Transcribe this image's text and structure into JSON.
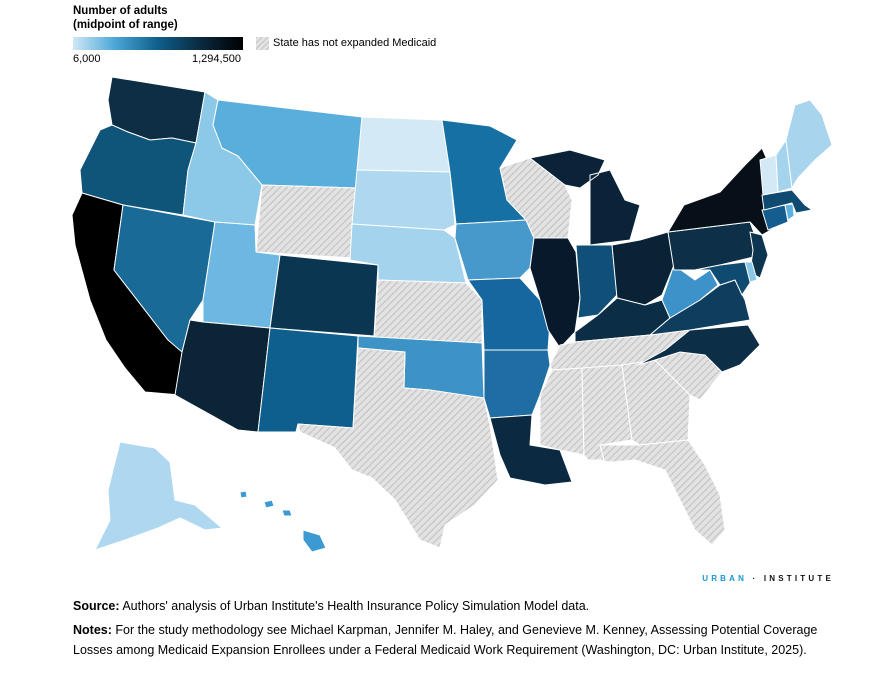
{
  "legend": {
    "title_line1": "Number of adults",
    "title_line2": "(midpoint of range)",
    "min_label": "6,000",
    "max_label": "1,294,500",
    "hatch_label": "State has not expanded Medicaid",
    "colors": [
      "#cfe8f6",
      "#4aa6d6",
      "#0e5f8a",
      "#0a2a40",
      "#000000"
    ]
  },
  "brand": {
    "part1": "URBAN",
    "separator": "·",
    "part2": "INSTITUTE"
  },
  "footer": {
    "source_label": "Source:",
    "source_text": " Authors' analysis of Urban Institute's Health Insurance Policy Simulation Model data.",
    "notes_label": "Notes:",
    "notes_text": " For the study methodology see Michael Karpman, Jennifer M. Haley, and Genevieve M. Kenney, Assessing Potential Coverage Losses among Medicaid Expansion Enrollees under a Federal Medicaid Work Requirement (Washington, DC: Urban Institute, 2025)."
  },
  "states": [
    {
      "name": "WA",
      "color": "#0d2e45",
      "hatched": false
    },
    {
      "name": "OR",
      "color": "#0f5479",
      "hatched": false
    },
    {
      "name": "CA",
      "color": "#000000",
      "hatched": false
    },
    {
      "name": "NV",
      "color": "#1a6a98",
      "hatched": false
    },
    {
      "name": "ID",
      "color": "#8cc8e8",
      "hatched": false
    },
    {
      "name": "MT",
      "color": "#5aaedc",
      "hatched": false
    },
    {
      "name": "WY",
      "color": "",
      "hatched": true
    },
    {
      "name": "UT",
      "color": "#6cb8e2",
      "hatched": false
    },
    {
      "name": "AZ",
      "color": "#0b2436",
      "hatched": false
    },
    {
      "name": "CO",
      "color": "#0b3651",
      "hatched": false
    },
    {
      "name": "NM",
      "color": "#0f5f8e",
      "hatched": false
    },
    {
      "name": "ND",
      "color": "#d3eaf6",
      "hatched": false
    },
    {
      "name": "SD",
      "color": "#add8ef",
      "hatched": false
    },
    {
      "name": "NE",
      "color": "#a4d3ee",
      "hatched": false
    },
    {
      "name": "KS",
      "color": "",
      "hatched": true
    },
    {
      "name": "OK",
      "color": "#3d92c6",
      "hatched": false
    },
    {
      "name": "TX",
      "color": "",
      "hatched": true
    },
    {
      "name": "MN",
      "color": "#1670a3",
      "hatched": false
    },
    {
      "name": "IA",
      "color": "#4799cb",
      "hatched": false
    },
    {
      "name": "MO",
      "color": "#1667a0",
      "hatched": false
    },
    {
      "name": "AR",
      "color": "#1f6da2",
      "hatched": false
    },
    {
      "name": "LA",
      "color": "#0b2a42",
      "hatched": false
    },
    {
      "name": "WI",
      "color": "",
      "hatched": true
    },
    {
      "name": "IL",
      "color": "#07192a",
      "hatched": false
    },
    {
      "name": "MI",
      "color": "#0a2338",
      "hatched": false
    },
    {
      "name": "IN",
      "color": "#0f4f78",
      "hatched": false
    },
    {
      "name": "OH",
      "color": "#0a2236",
      "hatched": false
    },
    {
      "name": "KY",
      "color": "#0b2d46",
      "hatched": false
    },
    {
      "name": "TN",
      "color": "",
      "hatched": true
    },
    {
      "name": "MS",
      "color": "",
      "hatched": true
    },
    {
      "name": "AL",
      "color": "",
      "hatched": true
    },
    {
      "name": "GA",
      "color": "",
      "hatched": true
    },
    {
      "name": "FL",
      "color": "",
      "hatched": true
    },
    {
      "name": "SC",
      "color": "",
      "hatched": true
    },
    {
      "name": "NC",
      "color": "#0c2e47",
      "hatched": false
    },
    {
      "name": "VA",
      "color": "#0f3d5e",
      "hatched": false
    },
    {
      "name": "WV",
      "color": "#3c92c9",
      "hatched": false
    },
    {
      "name": "PA",
      "color": "#0d2f48",
      "hatched": false
    },
    {
      "name": "NY",
      "color": "#070f18",
      "hatched": false
    },
    {
      "name": "NJ",
      "color": "#0d3550",
      "hatched": false
    },
    {
      "name": "MD",
      "color": "#0f4b70",
      "hatched": false
    },
    {
      "name": "DE",
      "color": "#8ac6e8",
      "hatched": false
    },
    {
      "name": "CT",
      "color": "#145d8e",
      "hatched": false
    },
    {
      "name": "RI",
      "color": "#5eb0de",
      "hatched": false
    },
    {
      "name": "MA",
      "color": "#0f4a70",
      "hatched": false
    },
    {
      "name": "VT",
      "color": "#d3eaf6",
      "hatched": false
    },
    {
      "name": "NH",
      "color": "#a4d3ee",
      "hatched": false
    },
    {
      "name": "ME",
      "color": "#a8d4ee",
      "hatched": false
    },
    {
      "name": "AK",
      "color": "#aed8ef",
      "hatched": false
    },
    {
      "name": "HI",
      "color": "#3d99d2",
      "hatched": false
    }
  ]
}
